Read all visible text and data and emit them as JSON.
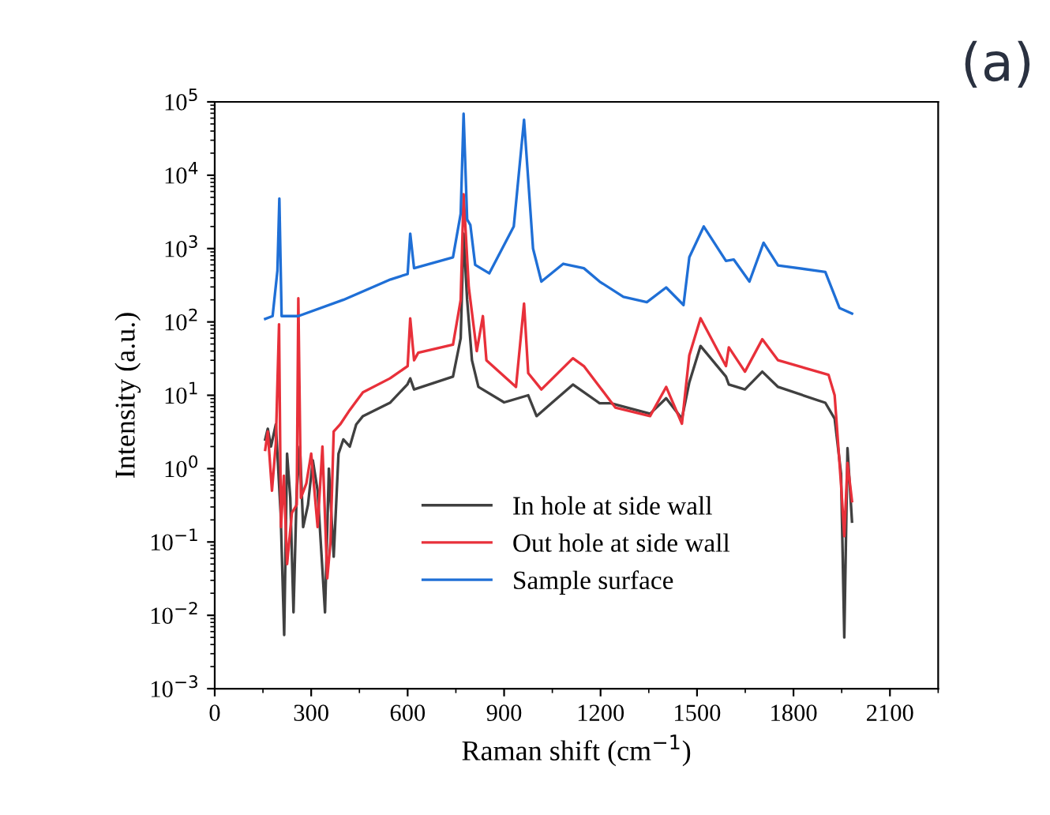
{
  "chart_data": {
    "type": "line",
    "xlabel": "Raman shift (cm$^{−1}$)",
    "ylabel": "Intensity (a.u.)",
    "annotations": [
      "(a)"
    ],
    "log": "y",
    "xlim": [
      0,
      2250
    ],
    "xticks": [
      0,
      300,
      600,
      900,
      1200,
      1500,
      1800,
      2100
    ],
    "ylim": [
      0.001,
      100000
    ],
    "yticks": [
      {
        "value": 0.001,
        "label": "10$^{−3}$"
      },
      {
        "value": 0.01,
        "label": "10$^{−2}$"
      },
      {
        "value": 0.1,
        "label": "10$^{−1}$"
      },
      {
        "value": 1,
        "label": "10$^{0}$"
      },
      {
        "value": 10,
        "label": "10$^{1}$"
      },
      {
        "value": 100,
        "label": "10$^{2}$"
      },
      {
        "value": 1000,
        "label": "10$^{3}$"
      },
      {
        "value": 10000,
        "label": "10$^{4}$"
      },
      {
        "value": 100000,
        "label": "10$^{5}$"
      }
    ],
    "grid": false,
    "legend": "bottom",
    "line_style": "solid",
    "marker": "none",
    "series": [
      {
        "name": "In hole at side wall",
        "color": "#404040",
        "x": [
          157,
          165,
          175,
          190,
          205,
          216,
          225,
          235,
          245,
          255,
          265,
          275,
          290,
          305,
          320,
          343,
          355,
          370,
          385,
          400,
          420,
          440,
          461,
          545,
          599,
          608,
          620,
          741,
          765,
          774,
          785,
          800,
          820,
          900,
          975,
          1001,
          1114,
          1197,
          1232,
          1354,
          1404,
          1453,
          1476,
          1511,
          1590,
          1599,
          1649,
          1703,
          1752,
          1899,
          1928,
          1948,
          1958,
          1968,
          1982
        ],
        "values": [
          2.5,
          3.5,
          2.0,
          4.0,
          0.25,
          0.0054,
          1.6,
          0.4,
          0.011,
          0.5,
          2.0,
          0.16,
          0.32,
          1.3,
          0.5,
          0.011,
          1,
          0.063,
          1.6,
          2.5,
          2.0,
          4.0,
          5.2,
          7.9,
          14,
          17,
          12,
          18,
          60,
          1600,
          200,
          30,
          13,
          8,
          10,
          5.2,
          14,
          7.8,
          7.8,
          5.6,
          9.1,
          4.8,
          15,
          47,
          18,
          14,
          12,
          21,
          13,
          7.9,
          4.8,
          0.85,
          0.005,
          1.9,
          0.19
        ]
      },
      {
        "name": "Out hole at side wall",
        "color": "#e8303a",
        "x": [
          157,
          165,
          178,
          190,
          200,
          206,
          215,
          225,
          240,
          255,
          260,
          268,
          285,
          300,
          320,
          335,
          350,
          360,
          370,
          390,
          420,
          461,
          545,
          600,
          608,
          620,
          633,
          741,
          765,
          774,
          790,
          815,
          834,
          845,
          937,
          962,
          975,
          1016,
          1114,
          1148,
          1246,
          1354,
          1404,
          1453,
          1476,
          1511,
          1590,
          1599,
          1649,
          1703,
          1752,
          1909,
          1928,
          1948,
          1958,
          1968,
          1982
        ],
        "values": [
          1.8,
          3.2,
          0.5,
          2.2,
          93,
          0.16,
          0.8,
          0.05,
          0.25,
          0.32,
          210,
          0.4,
          0.63,
          1.6,
          0.16,
          2.0,
          0.032,
          0.1,
          3.2,
          4.0,
          6.3,
          11,
          17,
          25,
          112,
          30,
          38,
          49,
          200,
          5500,
          300,
          40,
          120,
          30,
          13,
          178,
          20,
          12,
          32,
          25,
          6.8,
          5.2,
          13,
          4.1,
          35,
          112,
          25,
          45,
          21,
          58,
          30,
          19,
          10,
          0.6,
          0.12,
          1.2,
          0.36
        ]
      },
      {
        "name": "Sample surface",
        "color": "#1f6fd6",
        "x": [
          157,
          180,
          195,
          201,
          208,
          260,
          400,
          547,
          600,
          608,
          620,
          741,
          765,
          774,
          785,
          795,
          810,
          854,
          930,
          962,
          990,
          1016,
          1084,
          1148,
          1197,
          1271,
          1344,
          1404,
          1458,
          1476,
          1521,
          1590,
          1614,
          1663,
          1707,
          1752,
          1899,
          1943,
          1982
        ],
        "values": [
          110,
          120,
          500,
          4800,
          120,
          120,
          200,
          380,
          450,
          1600,
          540,
          760,
          3000,
          69000,
          2500,
          2100,
          600,
          460,
          2000,
          57000,
          1000,
          355,
          620,
          540,
          355,
          220,
          186,
          295,
          170,
          760,
          2000,
          680,
          710,
          355,
          1200,
          590,
          480,
          155,
          130
        ]
      }
    ]
  }
}
